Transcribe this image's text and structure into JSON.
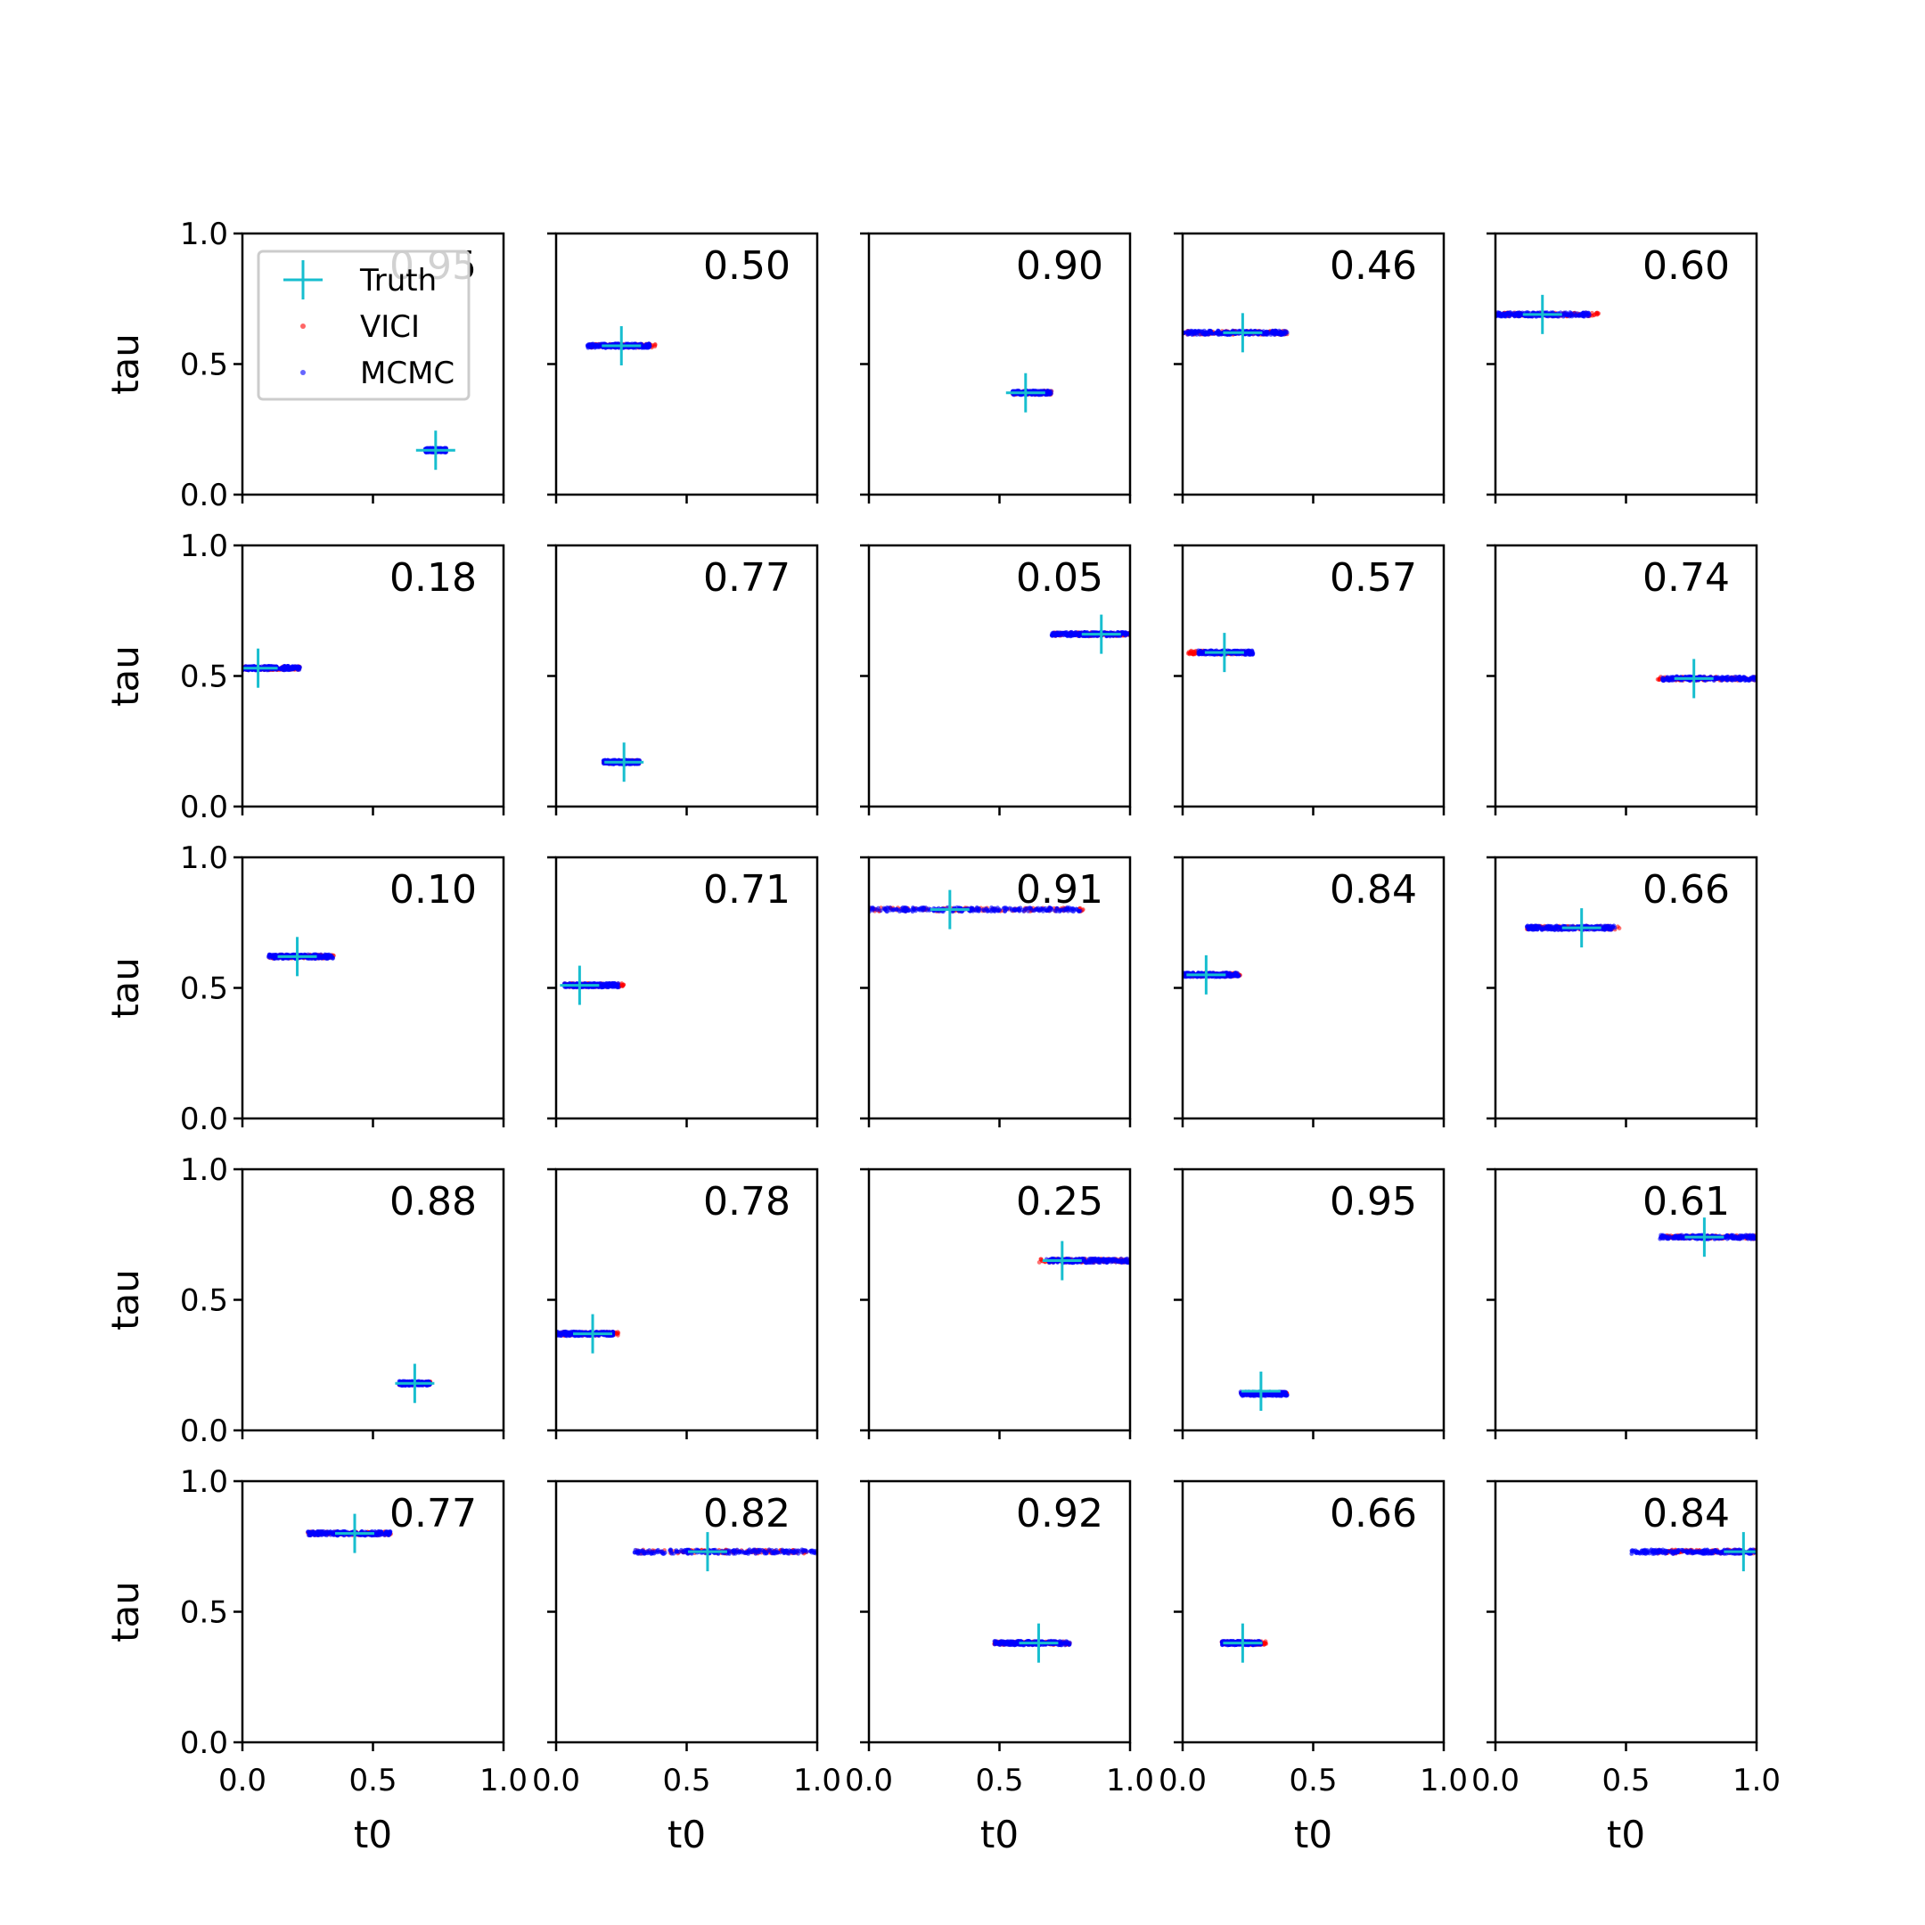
{
  "figure": {
    "xlabel": "t0",
    "ylabel": "tau",
    "xlim": [
      0,
      1
    ],
    "ylim": [
      0,
      1
    ],
    "xticks": [
      "0.0",
      "0.5",
      "1.0"
    ],
    "yticks": [
      "0.0",
      "0.5",
      "1.0"
    ],
    "colors": {
      "truth": "#17becf",
      "vici": "#ff0000",
      "mcmc": "#0000ff"
    },
    "legend": {
      "placement": "upper-left of first panel",
      "entries": [
        {
          "key": "truth",
          "label": "Truth",
          "marker": "plus-icon"
        },
        {
          "key": "vici",
          "label": "VICI",
          "marker": "dot-icon"
        },
        {
          "key": "mcmc",
          "label": "MCMC",
          "marker": "dot-icon"
        }
      ]
    }
  },
  "chart_data": {
    "type": "scatter",
    "grid": false,
    "layout": "5x5 panels",
    "panels": [
      {
        "score": "0.95",
        "truth": [
          0.74,
          0.17
        ],
        "vici": [
          0.7,
          0.78,
          0.17
        ],
        "mcmc": [
          0.7,
          0.78,
          0.17
        ]
      },
      {
        "score": "0.50",
        "truth": [
          0.25,
          0.57
        ],
        "vici": [
          0.12,
          0.38,
          0.57
        ],
        "mcmc": [
          0.12,
          0.36,
          0.57
        ]
      },
      {
        "score": "0.90",
        "truth": [
          0.6,
          0.39
        ],
        "vici": [
          0.55,
          0.7,
          0.39
        ],
        "mcmc": [
          0.55,
          0.7,
          0.39
        ]
      },
      {
        "score": "0.46",
        "truth": [
          0.23,
          0.62
        ],
        "vici": [
          0.0,
          0.4,
          0.62
        ],
        "mcmc": [
          0.0,
          0.4,
          0.62
        ]
      },
      {
        "score": "0.60",
        "truth": [
          0.18,
          0.69
        ],
        "vici": [
          0.0,
          0.4,
          0.69
        ],
        "mcmc": [
          0.0,
          0.36,
          0.69
        ]
      },
      {
        "score": "0.18",
        "truth": [
          0.06,
          0.53
        ],
        "vici": [
          0.0,
          0.22,
          0.53
        ],
        "mcmc": [
          0.0,
          0.22,
          0.53
        ]
      },
      {
        "score": "0.77",
        "truth": [
          0.26,
          0.17
        ],
        "vici": [
          0.18,
          0.32,
          0.17
        ],
        "mcmc": [
          0.18,
          0.32,
          0.17
        ]
      },
      {
        "score": "0.05",
        "truth": [
          0.89,
          0.66
        ],
        "vici": [
          0.7,
          1.0,
          0.66
        ],
        "mcmc": [
          0.7,
          1.0,
          0.66
        ]
      },
      {
        "score": "0.57",
        "truth": [
          0.16,
          0.59
        ],
        "vici": [
          0.02,
          0.27,
          0.59
        ],
        "mcmc": [
          0.06,
          0.27,
          0.59
        ]
      },
      {
        "score": "0.74",
        "truth": [
          0.76,
          0.49
        ],
        "vici": [
          0.62,
          1.0,
          0.49
        ],
        "mcmc": [
          0.64,
          1.0,
          0.49
        ]
      },
      {
        "score": "0.10",
        "truth": [
          0.21,
          0.62
        ],
        "vici": [
          0.1,
          0.35,
          0.62
        ],
        "mcmc": [
          0.1,
          0.35,
          0.62
        ]
      },
      {
        "score": "0.71",
        "truth": [
          0.09,
          0.51
        ],
        "vici": [
          0.03,
          0.26,
          0.51
        ],
        "mcmc": [
          0.03,
          0.24,
          0.51
        ]
      },
      {
        "score": "0.91",
        "truth": [
          0.31,
          0.8
        ],
        "vici": [
          0.0,
          0.83,
          0.8
        ],
        "mcmc": [
          0.0,
          0.81,
          0.8
        ]
      },
      {
        "score": "0.84",
        "truth": [
          0.09,
          0.55
        ],
        "vici": [
          0.0,
          0.22,
          0.55
        ],
        "mcmc": [
          0.0,
          0.22,
          0.55
        ]
      },
      {
        "score": "0.66",
        "truth": [
          0.33,
          0.73
        ],
        "vici": [
          0.12,
          0.48,
          0.73
        ],
        "mcmc": [
          0.12,
          0.46,
          0.73
        ]
      },
      {
        "score": "0.88",
        "truth": [
          0.66,
          0.18
        ],
        "vici": [
          0.6,
          0.72,
          0.18
        ],
        "mcmc": [
          0.6,
          0.72,
          0.18
        ]
      },
      {
        "score": "0.78",
        "truth": [
          0.14,
          0.37
        ],
        "vici": [
          0.0,
          0.24,
          0.37
        ],
        "mcmc": [
          0.0,
          0.22,
          0.37
        ]
      },
      {
        "score": "0.25",
        "truth": [
          0.74,
          0.65
        ],
        "vici": [
          0.65,
          1.0,
          0.65
        ],
        "mcmc": [
          0.68,
          1.0,
          0.65
        ]
      },
      {
        "score": "0.95",
        "truth": [
          0.3,
          0.15
        ],
        "vici": [
          0.22,
          0.4,
          0.14
        ],
        "mcmc": [
          0.22,
          0.4,
          0.14
        ]
      },
      {
        "score": "0.61",
        "truth": [
          0.8,
          0.74
        ],
        "vici": [
          0.63,
          1.0,
          0.74
        ],
        "mcmc": [
          0.63,
          1.0,
          0.74
        ]
      },
      {
        "score": "0.77",
        "truth": [
          0.43,
          0.8
        ],
        "vici": [
          0.25,
          0.57,
          0.8
        ],
        "mcmc": [
          0.25,
          0.57,
          0.8
        ]
      },
      {
        "score": "0.82",
        "truth": [
          0.58,
          0.73
        ],
        "vici": [
          0.3,
          1.0,
          0.73
        ],
        "mcmc": [
          0.3,
          1.0,
          0.73
        ]
      },
      {
        "score": "0.92",
        "truth": [
          0.65,
          0.38
        ],
        "vici": [
          0.48,
          0.77,
          0.38
        ],
        "mcmc": [
          0.48,
          0.77,
          0.38
        ]
      },
      {
        "score": "0.66",
        "truth": [
          0.23,
          0.38
        ],
        "vici": [
          0.15,
          0.32,
          0.38
        ],
        "mcmc": [
          0.15,
          0.3,
          0.38
        ]
      },
      {
        "score": "0.84",
        "truth": [
          0.95,
          0.73
        ],
        "vici": [
          0.62,
          1.0,
          0.73
        ],
        "mcmc": [
          0.52,
          1.0,
          0.73
        ]
      }
    ]
  }
}
